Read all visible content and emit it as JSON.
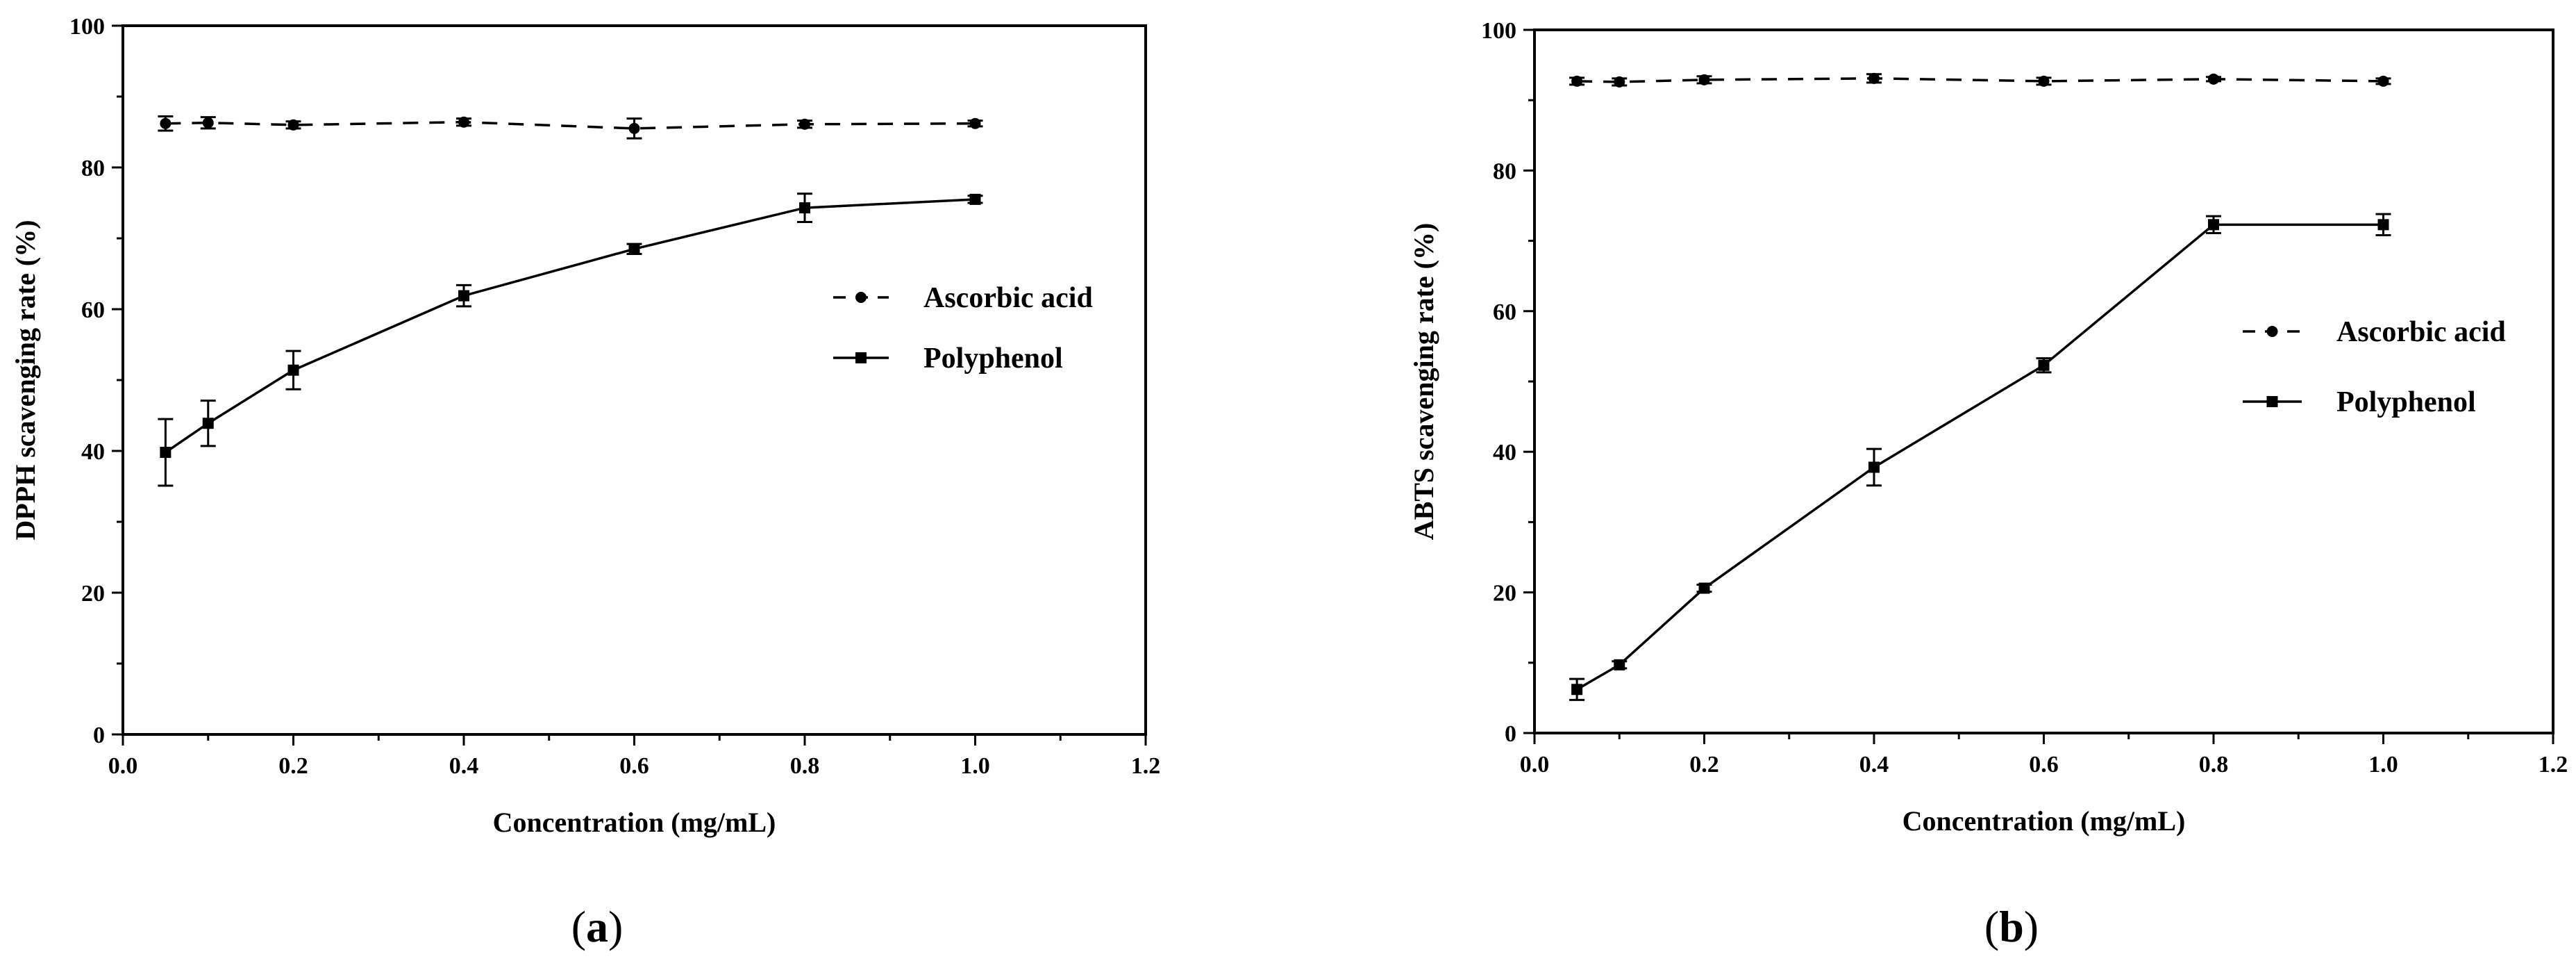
{
  "chart_data": [
    {
      "type": "line",
      "panel_label_open": "(",
      "panel_label_letter": "a",
      "panel_label_close": ")",
      "xlabel": "Concentration (mg/mL)",
      "ylabel": "DPPH scavenging rate (%)",
      "xlim": [
        0.0,
        1.2
      ],
      "ylim": [
        0,
        100
      ],
      "xticks": [
        "0.0",
        "0.2",
        "0.4",
        "0.6",
        "0.8",
        "1.0",
        "1.2"
      ],
      "yticks": [
        "0",
        "20",
        "40",
        "60",
        "80",
        "100"
      ],
      "legend_position": "right",
      "x": [
        0.05,
        0.1,
        0.2,
        0.4,
        0.6,
        0.8,
        1.0
      ],
      "series": [
        {
          "name": "Ascorbic acid",
          "style": "dashed",
          "marker": "circle",
          "values": [
            86.2,
            86.3,
            86.0,
            86.4,
            85.5,
            86.1,
            86.2
          ],
          "errors": [
            1.0,
            0.8,
            0.5,
            0.5,
            1.4,
            0.5,
            0.4
          ]
        },
        {
          "name": "Polyphenol",
          "style": "solid",
          "marker": "square",
          "values": [
            39.8,
            43.9,
            51.4,
            61.9,
            68.5,
            74.3,
            75.5
          ],
          "errors": [
            4.7,
            3.2,
            2.7,
            1.5,
            0.7,
            2.0,
            0.5
          ]
        }
      ]
    },
    {
      "type": "line",
      "panel_label_open": "(",
      "panel_label_letter": "b",
      "panel_label_close": ")",
      "xlabel": "Concentration (mg/mL)",
      "ylabel": "ABTS scavenging rate (%)",
      "xlim": [
        0.0,
        1.2
      ],
      "ylim": [
        0,
        100
      ],
      "xticks": [
        "0.0",
        "0.2",
        "0.4",
        "0.6",
        "0.8",
        "1.0",
        "1.2"
      ],
      "yticks": [
        "0",
        "20",
        "40",
        "60",
        "80",
        "100"
      ],
      "legend_position": "right",
      "x": [
        0.05,
        0.1,
        0.2,
        0.4,
        0.6,
        0.8,
        1.0
      ],
      "series": [
        {
          "name": "Ascorbic acid",
          "style": "dashed",
          "marker": "circle",
          "values": [
            92.7,
            92.6,
            92.9,
            93.1,
            92.7,
            93.0,
            92.7
          ],
          "errors": [
            0.5,
            0.5,
            0.5,
            0.6,
            0.5,
            0.3,
            0.4
          ]
        },
        {
          "name": "Polyphenol",
          "style": "solid",
          "marker": "square",
          "values": [
            6.2,
            9.7,
            20.6,
            37.8,
            52.3,
            72.3,
            72.3
          ],
          "errors": [
            1.5,
            0.5,
            0.5,
            2.6,
            1.0,
            1.2,
            1.5
          ]
        }
      ]
    }
  ]
}
